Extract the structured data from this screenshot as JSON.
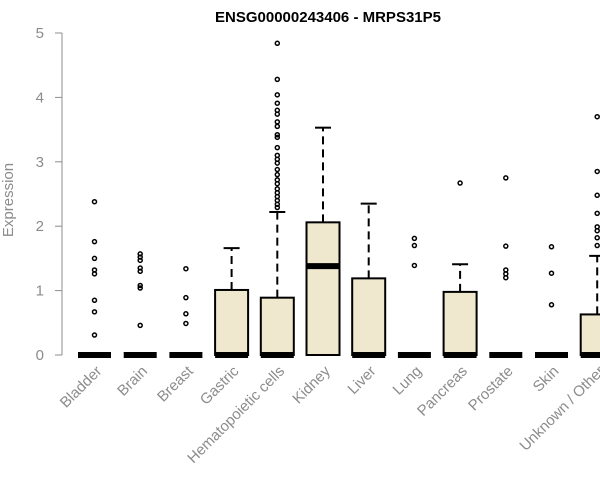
{
  "chart_data": {
    "type": "box",
    "title": "ENSG00000243406 - MRPS31P5",
    "ylabel": "Expression",
    "xlabel": "",
    "ylim": [
      0,
      5
    ],
    "yticks": [
      0,
      1,
      2,
      3,
      4,
      5
    ],
    "grid": false,
    "box_fill": "#efe8cf",
    "categories": [
      "Bladder",
      "Brain",
      "Breast",
      "Gastric",
      "Hematopoietic cells",
      "Kidney",
      "Liver",
      "Lung",
      "Pancreas",
      "Prostate",
      "Skin",
      "Unknown / Other"
    ],
    "boxes": [
      {
        "q1": 0,
        "median": 0,
        "q3": 0,
        "whisker_low": 0,
        "whisker_high": 0,
        "outliers": [
          2.38,
          1.76,
          1.5,
          1.32,
          1.26,
          0.85,
          0.67,
          0.31
        ]
      },
      {
        "q1": 0,
        "median": 0,
        "q3": 0,
        "whisker_low": 0,
        "whisker_high": 0,
        "outliers": [
          1.57,
          1.52,
          1.47,
          1.35,
          1.3,
          1.08,
          1.04,
          0.46
        ]
      },
      {
        "q1": 0,
        "median": 0,
        "q3": 0,
        "whisker_low": 0,
        "whisker_high": 0,
        "outliers": [
          1.34,
          0.89,
          0.64,
          0.49
        ]
      },
      {
        "q1": 0,
        "median": 0,
        "q3": 1.01,
        "whisker_low": 0,
        "whisker_high": 1.66,
        "outliers": []
      },
      {
        "q1": 0,
        "median": 0,
        "q3": 0.89,
        "whisker_low": 0,
        "whisker_high": 2.22,
        "outliers": [
          4.84,
          4.28,
          4.04,
          3.91,
          3.8,
          3.74,
          3.62,
          3.55,
          3.42,
          3.38,
          3.22,
          3.1,
          3.04,
          2.98,
          2.88,
          2.8,
          2.72,
          2.66,
          2.58,
          2.52,
          2.46,
          2.4,
          2.34,
          2.29
        ]
      },
      {
        "q1": 0,
        "median": 1.38,
        "q3": 2.06,
        "whisker_low": 0,
        "whisker_high": 3.53,
        "outliers": []
      },
      {
        "q1": 0,
        "median": 0,
        "q3": 1.19,
        "whisker_low": 0,
        "whisker_high": 2.35,
        "outliers": []
      },
      {
        "q1": 0,
        "median": 0,
        "q3": 0,
        "whisker_low": 0,
        "whisker_high": 0,
        "outliers": [
          1.81,
          1.7,
          1.39
        ]
      },
      {
        "q1": 0,
        "median": 0,
        "q3": 0.98,
        "whisker_low": 0,
        "whisker_high": 1.41,
        "outliers": [
          2.67
        ]
      },
      {
        "q1": 0,
        "median": 0,
        "q3": 0,
        "whisker_low": 0,
        "whisker_high": 0,
        "outliers": [
          2.75,
          1.69,
          1.32,
          1.26,
          1.2
        ]
      },
      {
        "q1": 0,
        "median": 0,
        "q3": 0,
        "whisker_low": 0,
        "whisker_high": 0,
        "outliers": [
          1.68,
          1.27,
          0.78
        ]
      },
      {
        "q1": 0,
        "median": 0,
        "q3": 0.63,
        "whisker_low": 0,
        "whisker_high": 1.54,
        "outliers": [
          3.7,
          2.85,
          2.48,
          2.2,
          1.99,
          1.93,
          1.82,
          1.7
        ]
      }
    ]
  }
}
